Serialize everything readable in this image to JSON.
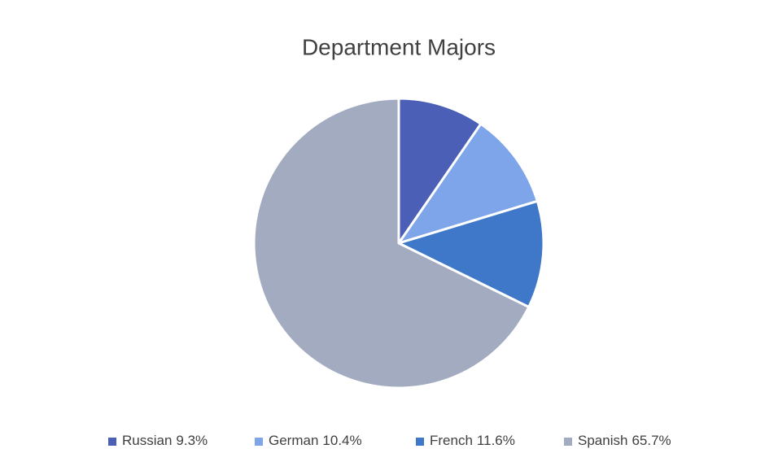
{
  "chart_data": {
    "type": "pie",
    "title": "Department Majors",
    "categories": [
      "Russian",
      "German",
      "French",
      "Spanish"
    ],
    "values": [
      9.3,
      10.4,
      11.6,
      65.7
    ],
    "value_labels": [
      "9.3%",
      "10.4%",
      "11.6%",
      "65.7%"
    ],
    "colors": [
      "#4a5fb5",
      "#7ea5ea",
      "#3f78c9",
      "#a3abc0"
    ],
    "legend": "bottom"
  }
}
